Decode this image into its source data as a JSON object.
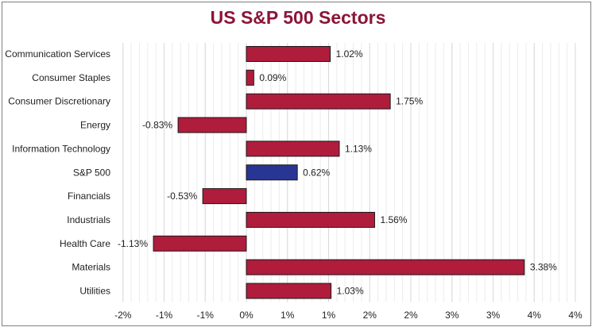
{
  "chart_data": {
    "type": "bar",
    "orientation": "horizontal",
    "title": "US S&P 500 Sectors",
    "categories": [
      "Communication Services",
      "Consumer Staples",
      "Consumer Discretionary",
      "Energy",
      "Information Technology",
      "S&P 500",
      "Financials",
      "Industrials",
      "Health Care",
      "Materials",
      "Utilities"
    ],
    "values": [
      1.02,
      0.09,
      1.75,
      -0.83,
      1.13,
      0.62,
      -0.53,
      1.56,
      -1.13,
      3.38,
      1.03
    ],
    "data_labels": [
      "1.02%",
      "0.09%",
      "1.75%",
      "-0.83%",
      "1.13%",
      "0.62%",
      "-0.53%",
      "1.56%",
      "-1.13%",
      "3.38%",
      "1.03%"
    ],
    "bar_colors": [
      "#b01c3c",
      "#b01c3c",
      "#b01c3c",
      "#b01c3c",
      "#b01c3c",
      "#283593",
      "#b01c3c",
      "#b01c3c",
      "#b01c3c",
      "#b01c3c",
      "#b01c3c"
    ],
    "xlim": [
      -1.5,
      4
    ],
    "x_ticks": [
      -1.5,
      -1,
      -0.5,
      0,
      0.5,
      1,
      1.5,
      2,
      2.5,
      3,
      3.5,
      4
    ],
    "x_tick_labels": [
      "-2%",
      "-1%",
      "-1%",
      "0%",
      "1%",
      "1%",
      "2%",
      "2%",
      "3%",
      "3%",
      "4%",
      "4%"
    ],
    "xlabel": "",
    "ylabel": "",
    "grid": true,
    "legend": false
  }
}
